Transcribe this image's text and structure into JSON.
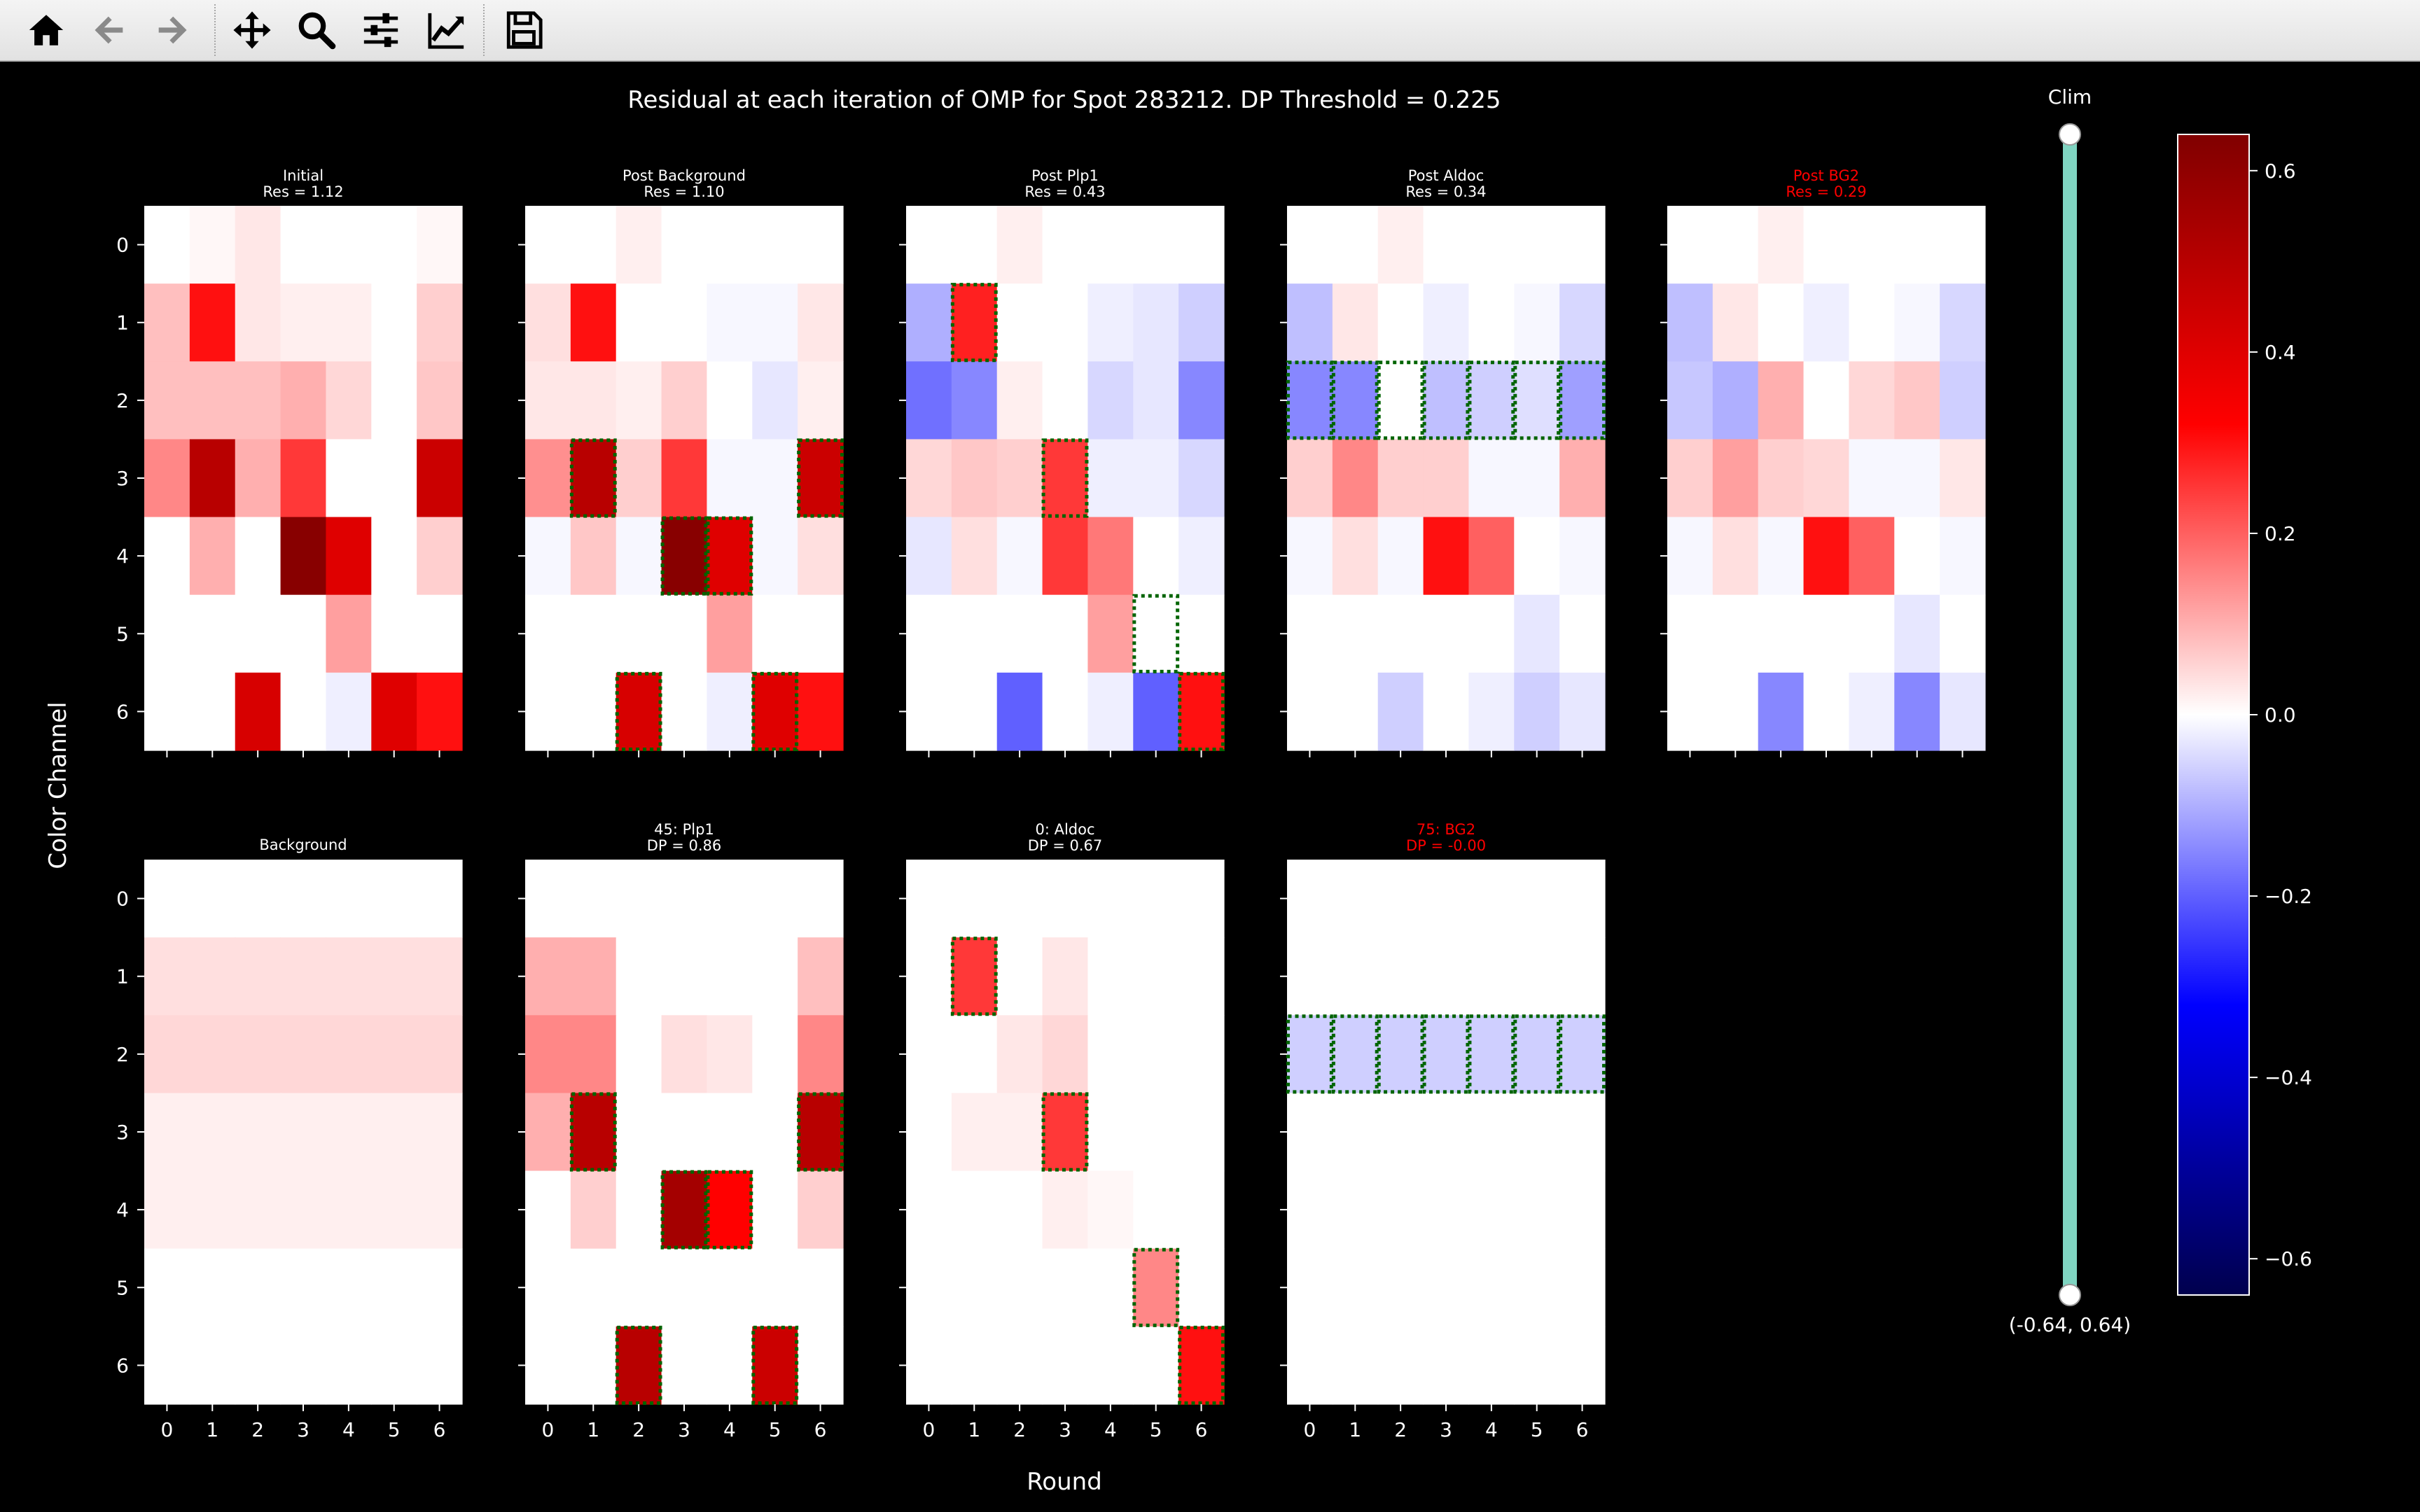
{
  "toolbar": {
    "buttons": [
      {
        "icon": "home-icon",
        "tooltip": "Reset original view"
      },
      {
        "icon": "back-arrow-icon",
        "tooltip": "Back to previous view"
      },
      {
        "icon": "forward-arrow-icon",
        "tooltip": "Forward to next view"
      },
      {
        "icon": "pan-move-icon",
        "tooltip": "Pan axes"
      },
      {
        "icon": "zoom-magnifier-icon",
        "tooltip": "Zoom to rectangle"
      },
      {
        "icon": "configure-subplots-icon",
        "tooltip": "Configure subplots"
      },
      {
        "icon": "edit-axis-icon",
        "tooltip": "Edit axis, curve and image parameters"
      },
      {
        "icon": "save-floppy-icon",
        "tooltip": "Save the figure"
      }
    ]
  },
  "figure": {
    "suptitle": "Residual at each iteration of OMP for Spot 283212. DP Threshold = 0.225",
    "xlabel": "Round",
    "ylabel": "Color Channel",
    "xticks": [
      "0",
      "1",
      "2",
      "3",
      "4",
      "5",
      "6"
    ],
    "yticks": [
      "0",
      "1",
      "2",
      "3",
      "4",
      "5",
      "6"
    ],
    "slider": {
      "label": "Clim",
      "value_text": "(-0.64, 0.64)",
      "min": -0.64,
      "max": 0.64
    },
    "colorbar": {
      "ticks": [
        "0.6",
        "0.4",
        "0.2",
        "0.0",
        "−0.2",
        "−0.4",
        "−0.6"
      ],
      "tick_values": [
        0.6,
        0.4,
        0.2,
        0.0,
        -0.2,
        -0.4,
        -0.6
      ],
      "range": [
        -0.64,
        0.64
      ],
      "cmap": "seismic"
    },
    "colors": {
      "background": "#000000",
      "text": "#ffffff",
      "highlight_title": "#ff0000",
      "box_outline": "#006400",
      "slider_track": "#7fd4c1"
    }
  },
  "chart_data": [
    {
      "type": "heatmap",
      "title": "Initial",
      "subtitle": "Res = 1.12",
      "red": false,
      "values": [
        [
          0,
          0.01,
          0.03,
          0,
          0,
          0,
          0.01
        ],
        [
          0.08,
          0.3,
          0.03,
          0.02,
          0.02,
          0,
          0.06
        ],
        [
          0.08,
          0.08,
          0.08,
          0.1,
          0.05,
          0,
          0.07
        ],
        [
          0.15,
          0.5,
          0.1,
          0.25,
          0,
          0,
          0.45
        ],
        [
          0,
          0.1,
          0,
          0.62,
          0.4,
          0,
          0.06
        ],
        [
          0,
          0,
          0,
          0,
          0.12,
          0,
          0
        ],
        [
          0,
          0,
          0.42,
          0,
          -0.02,
          0.4,
          0.3
        ]
      ],
      "boxes": []
    },
    {
      "type": "heatmap",
      "title": "Post Background",
      "subtitle": "Res = 1.10",
      "red": false,
      "values": [
        [
          0,
          0,
          0.02,
          0,
          0,
          0,
          0
        ],
        [
          0.04,
          0.3,
          0,
          0,
          -0.01,
          -0.01,
          0.03
        ],
        [
          0.03,
          0.03,
          0.02,
          0.06,
          0,
          -0.03,
          0.02
        ],
        [
          0.14,
          0.5,
          0.06,
          0.25,
          -0.01,
          -0.01,
          0.45
        ],
        [
          -0.01,
          0.07,
          -0.01,
          0.62,
          0.4,
          -0.01,
          0.04
        ],
        [
          0,
          0,
          0,
          0,
          0.12,
          0,
          0
        ],
        [
          0,
          0,
          0.42,
          0,
          -0.02,
          0.4,
          0.3
        ]
      ],
      "boxes": [
        [
          3,
          1
        ],
        [
          3,
          6
        ],
        [
          4,
          3
        ],
        [
          4,
          4
        ],
        [
          6,
          2
        ],
        [
          6,
          5
        ]
      ]
    },
    {
      "type": "heatmap",
      "title": "Post Plp1",
      "subtitle": "Res = 0.43",
      "red": false,
      "values": [
        [
          0,
          0,
          0.02,
          0,
          0,
          0,
          0
        ],
        [
          -0.1,
          0.28,
          0,
          0,
          -0.02,
          -0.03,
          -0.06
        ],
        [
          -0.18,
          -0.15,
          0.02,
          0,
          -0.05,
          -0.03,
          -0.15
        ],
        [
          0.05,
          0.07,
          0.06,
          0.25,
          -0.02,
          -0.02,
          -0.05
        ],
        [
          -0.03,
          0.04,
          -0.01,
          0.25,
          0.17,
          0,
          -0.02
        ],
        [
          0,
          0,
          0,
          0,
          0.12,
          0,
          0
        ],
        [
          0,
          0,
          -0.2,
          0,
          -0.02,
          -0.2,
          0.3
        ]
      ],
      "boxes": [
        [
          1,
          1
        ],
        [
          3,
          3
        ],
        [
          5,
          5
        ],
        [
          6,
          6
        ]
      ]
    },
    {
      "type": "heatmap",
      "title": "Post Aldoc",
      "subtitle": "Res = 0.34",
      "red": false,
      "values": [
        [
          0,
          0,
          0.02,
          0,
          0,
          0,
          0
        ],
        [
          -0.08,
          0.03,
          0,
          -0.02,
          0,
          -0.01,
          -0.05
        ],
        [
          -0.15,
          -0.15,
          0,
          -0.08,
          -0.06,
          -0.04,
          -0.12
        ],
        [
          0.06,
          0.15,
          0.06,
          0.06,
          -0.01,
          -0.01,
          0.1
        ],
        [
          -0.01,
          0.04,
          -0.01,
          0.3,
          0.2,
          0,
          -0.01
        ],
        [
          0,
          0,
          0,
          0,
          0,
          -0.03,
          0
        ],
        [
          0,
          0,
          -0.06,
          0,
          -0.02,
          -0.06,
          -0.03
        ]
      ],
      "boxes": [
        [
          2,
          0
        ],
        [
          2,
          1
        ],
        [
          2,
          2
        ],
        [
          2,
          3
        ],
        [
          2,
          4
        ],
        [
          2,
          5
        ],
        [
          2,
          6
        ]
      ]
    },
    {
      "type": "heatmap",
      "title": "Post BG2",
      "subtitle": "Res = 0.29",
      "red": true,
      "values": [
        [
          0,
          0,
          0.02,
          0,
          0,
          0,
          0
        ],
        [
          -0.08,
          0.03,
          0,
          -0.02,
          0,
          -0.01,
          -0.05
        ],
        [
          -0.07,
          -0.1,
          0.1,
          0,
          0.05,
          0.07,
          -0.06
        ],
        [
          0.06,
          0.12,
          0.06,
          0.05,
          -0.01,
          -0.01,
          0.03
        ],
        [
          -0.01,
          0.04,
          -0.01,
          0.3,
          0.2,
          0,
          -0.01
        ],
        [
          0,
          0,
          0,
          0,
          0,
          -0.03,
          0
        ],
        [
          0,
          0,
          -0.15,
          0,
          -0.02,
          -0.15,
          -0.03
        ]
      ],
      "boxes": []
    },
    {
      "type": "heatmap",
      "title": "Background",
      "subtitle": "",
      "red": false,
      "values": [
        [
          0,
          0,
          0,
          0,
          0,
          0,
          0
        ],
        [
          0.04,
          0.04,
          0.04,
          0.04,
          0.04,
          0.04,
          0.04
        ],
        [
          0.05,
          0.05,
          0.05,
          0.05,
          0.05,
          0.05,
          0.05
        ],
        [
          0.02,
          0.02,
          0.02,
          0.02,
          0.02,
          0.02,
          0.02
        ],
        [
          0.02,
          0.02,
          0.02,
          0.02,
          0.02,
          0.02,
          0.02
        ],
        [
          0,
          0,
          0,
          0,
          0,
          0,
          0
        ],
        [
          0,
          0,
          0,
          0,
          0,
          0,
          0
        ]
      ],
      "boxes": []
    },
    {
      "type": "heatmap",
      "title": "45: Plp1",
      "subtitle": "DP = 0.86",
      "red": false,
      "values": [
        [
          0,
          0,
          0,
          0,
          0,
          0,
          0
        ],
        [
          0.1,
          0.1,
          0,
          0,
          0,
          0,
          0.08
        ],
        [
          0.15,
          0.15,
          0,
          0.04,
          0.03,
          0,
          0.15
        ],
        [
          0.1,
          0.5,
          0,
          0,
          0,
          0,
          0.5
        ],
        [
          0,
          0.06,
          0,
          0.55,
          0.32,
          0,
          0.06
        ],
        [
          0,
          0,
          0,
          0,
          0,
          0,
          0
        ],
        [
          0,
          0,
          0.5,
          0,
          0,
          0.45,
          0
        ]
      ],
      "boxes": [
        [
          3,
          1
        ],
        [
          3,
          6
        ],
        [
          4,
          3
        ],
        [
          4,
          4
        ],
        [
          6,
          2
        ],
        [
          6,
          5
        ]
      ]
    },
    {
      "type": "heatmap",
      "title": "0: Aldoc",
      "subtitle": "DP = 0.67",
      "red": false,
      "values": [
        [
          0,
          0,
          0,
          0,
          0,
          0,
          0
        ],
        [
          0,
          0.25,
          0,
          0.03,
          0,
          0,
          0
        ],
        [
          0,
          0,
          0.03,
          0.05,
          0,
          0,
          0
        ],
        [
          0,
          0.02,
          0.02,
          0.25,
          0,
          0,
          0
        ],
        [
          0,
          0,
          0,
          0.02,
          0.01,
          0,
          0
        ],
        [
          0,
          0,
          0,
          0,
          0,
          0.15,
          0
        ],
        [
          0,
          0,
          0,
          0,
          0,
          0,
          0.3
        ]
      ],
      "boxes": [
        [
          1,
          1
        ],
        [
          3,
          3
        ],
        [
          5,
          5
        ],
        [
          6,
          6
        ]
      ]
    },
    {
      "type": "heatmap",
      "title": "75: BG2",
      "subtitle": "DP = -0.00",
      "red": true,
      "values": [
        [
          0,
          0,
          0,
          0,
          0,
          0,
          0
        ],
        [
          0,
          0,
          0,
          0,
          0,
          0,
          0
        ],
        [
          -0.06,
          -0.06,
          -0.06,
          -0.06,
          -0.06,
          -0.06,
          -0.06
        ],
        [
          0,
          0,
          0,
          0,
          0,
          0,
          0
        ],
        [
          0,
          0,
          0,
          0,
          0,
          0,
          0
        ],
        [
          0,
          0,
          0,
          0,
          0,
          0,
          0
        ],
        [
          0,
          0,
          0,
          0,
          0,
          0,
          0
        ]
      ],
      "boxes": [
        [
          2,
          0
        ],
        [
          2,
          1
        ],
        [
          2,
          2
        ],
        [
          2,
          3
        ],
        [
          2,
          4
        ],
        [
          2,
          5
        ],
        [
          2,
          6
        ]
      ]
    }
  ]
}
